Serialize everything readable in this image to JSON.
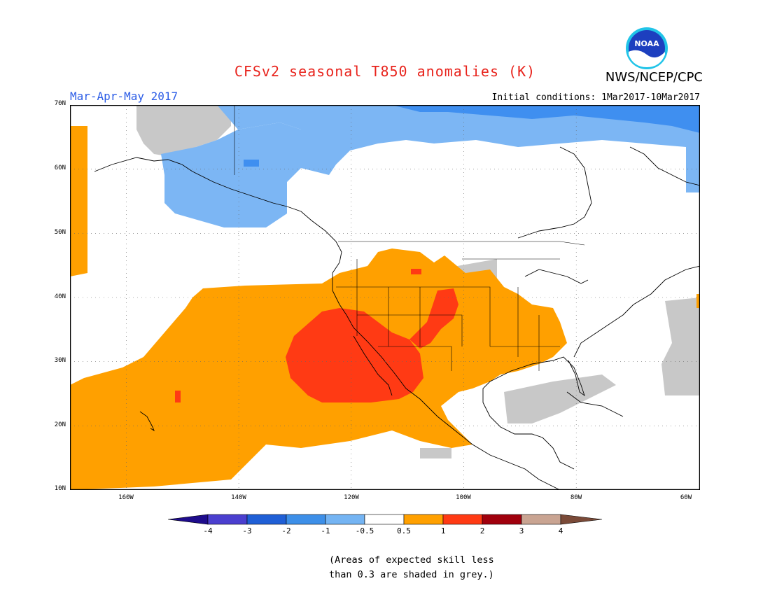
{
  "title": "CFSv2 seasonal T850 anomalies (K)",
  "agency": "NWS/NCEP/CPC",
  "logo_text": "NOAA",
  "season": "Mar-Apr-May 2017",
  "initial_conditions": "Initial conditions: 1Mar2017-10Mar2017",
  "note": [
    "(Areas of expected skill less",
    "than 0.3 are shaded in grey.)"
  ],
  "map": {
    "projection": "lat-lon",
    "lat_range": [
      10,
      70
    ],
    "lon_range": [
      "172W",
      "60W"
    ],
    "lat_labels": [
      "70N",
      "60N",
      "50N",
      "40N",
      "30N",
      "20N",
      "10N"
    ],
    "lon_labels": [
      "160W",
      "140W",
      "120W",
      "100W",
      "80W",
      "60W"
    ],
    "gridlines": "dotted"
  },
  "colorbar": {
    "labels": [
      "-4",
      "-3",
      "-2",
      "-1",
      "-0.5",
      "0.5",
      "1",
      "2",
      "3",
      "4"
    ],
    "colors": [
      "#1e0c8c",
      "#4b3fcf",
      "#1f5fd6",
      "#3d8fe8",
      "#74b4f3",
      "#ffffff",
      "#ffa000",
      "#ff3a14",
      "#a0000d",
      "#c9a492",
      "#7a4a38"
    ]
  }
}
